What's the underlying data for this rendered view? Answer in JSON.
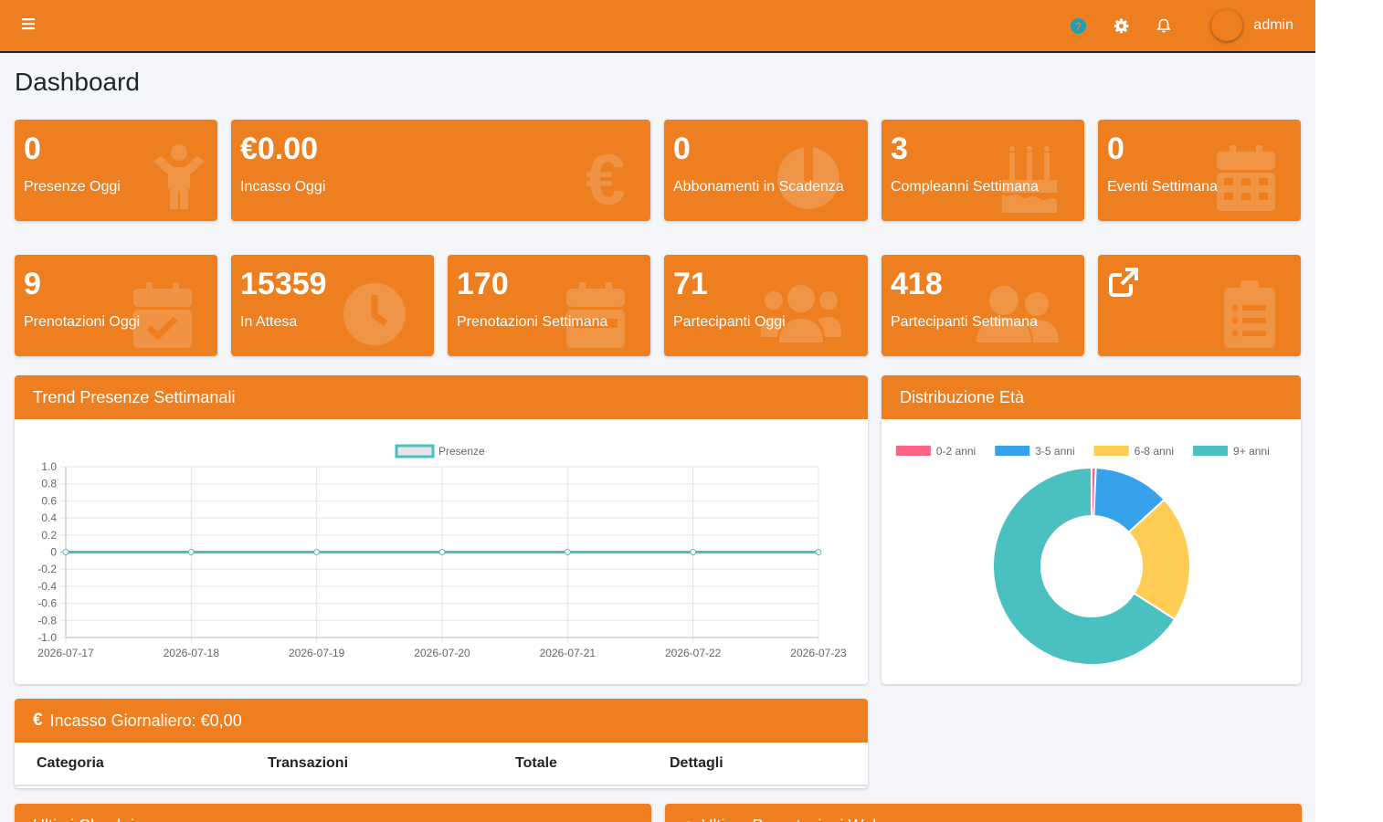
{
  "navbar": {
    "menu_icon": "hamburger-icon",
    "icons": [
      "help-icon",
      "gear-icon",
      "bell-icon"
    ],
    "user_name": "admin"
  },
  "page": {
    "title": "Dashboard"
  },
  "stats_row1": [
    {
      "value": "0",
      "label": "Presenze Oggi",
      "icon": "child-icon"
    },
    {
      "value": "€0.00",
      "label": "Incasso Oggi",
      "icon": "euro-icon"
    },
    {
      "value": "0",
      "label": "Abbonamenti in Scadenza",
      "icon": "exclamation-circle-icon"
    },
    {
      "value": "3",
      "label": "Compleanni Settimana",
      "icon": "birthday-cake-icon"
    },
    {
      "value": "0",
      "label": "Eventi Settimana",
      "icon": "calendar-icon"
    }
  ],
  "stats_row2": [
    {
      "value": "9",
      "label": "Prenotazioni Oggi",
      "icon": "calendar-check-icon"
    },
    {
      "value": "15359",
      "label": "In Attesa",
      "icon": "clock-icon"
    },
    {
      "value": "170",
      "label": "Prenotazioni Settimana",
      "icon": "calendar-week-icon"
    },
    {
      "value": "71",
      "label": "Partecipanti Oggi",
      "icon": "users-icon"
    },
    {
      "value": "418",
      "label": "Partecipanti Settimana",
      "icon": "user-friends-icon"
    },
    {
      "value": "",
      "label": "",
      "icon": "external-link-icon",
      "bg_icon": "clipboard-list-icon"
    }
  ],
  "trend_card": {
    "title": "Trend Presenze Settimanali"
  },
  "age_card": {
    "title": "Distribuzione Età"
  },
  "income_card": {
    "icon": "€",
    "title": "Incasso Giornaliero: €0,00",
    "columns": [
      "Categoria",
      "Transazioni",
      "Totale",
      "Dettagli"
    ]
  },
  "bottom_cards": [
    {
      "title": "Ultimi Check-in"
    },
    {
      "title": "Ultime Prenotazioni Web"
    }
  ],
  "chart_data": [
    {
      "type": "line",
      "x": [
        "2026-07-17",
        "2026-07-18",
        "2026-07-19",
        "2026-07-20",
        "2026-07-21",
        "2026-07-22",
        "2026-07-23"
      ],
      "series": [
        {
          "name": "Presenze",
          "values": [
            0,
            0,
            0,
            0,
            0,
            0,
            0
          ],
          "color": "#4bc0c0"
        }
      ],
      "ylim": [
        -1.0,
        1.0
      ],
      "yticks": [
        "1.0",
        "0.8",
        "0.6",
        "0.4",
        "0.2",
        "0",
        "-0.2",
        "-0.4",
        "-0.6",
        "-0.8",
        "-1.0"
      ],
      "grid": true,
      "legend": "top"
    },
    {
      "type": "pie",
      "categories": [
        "0-2 anni",
        "3-5 anni",
        "6-8 anni",
        "9+ anni"
      ],
      "values": [
        1,
        18,
        30,
        95
      ],
      "colors": [
        "#ff6384",
        "#36a2eb",
        "#ffcd56",
        "#4bc0c0"
      ],
      "donut": true,
      "legend": "top"
    }
  ]
}
